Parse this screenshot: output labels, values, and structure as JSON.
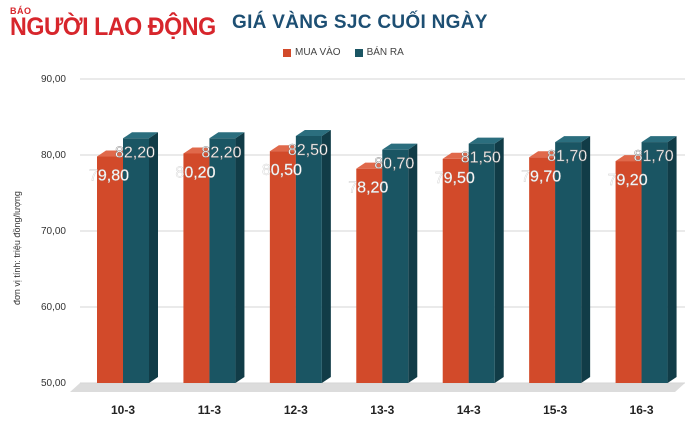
{
  "logo": {
    "small": "BÁO",
    "name": "NGƯỜI LAO ĐỘNG"
  },
  "colors": {
    "buy": "#d24a2a",
    "sell": "#1a5563",
    "brand": "#d7262c",
    "title": "#1d4f73"
  },
  "chart_data": {
    "type": "bar",
    "title": "GIÁ VÀNG SJC CUỐI NGÀY",
    "ylabel": "đơn vị tính: triệu đồng/lượng",
    "xlabel": "",
    "categories": [
      "10-3",
      "11-3",
      "12-3",
      "13-3",
      "14-3",
      "15-3",
      "16-3"
    ],
    "series": [
      {
        "name": "MUA VÀO",
        "values": [
          79.8,
          80.2,
          80.5,
          78.2,
          79.5,
          79.7,
          79.2
        ],
        "labels": [
          "79,80",
          "80,20",
          "80,50",
          "78,20",
          "79,50",
          "79,70",
          "79,20"
        ]
      },
      {
        "name": "BÁN RA",
        "values": [
          82.2,
          82.2,
          82.5,
          80.7,
          81.5,
          81.7,
          81.7
        ],
        "labels": [
          "82,20",
          "82,20",
          "82,50",
          "80,70",
          "81,50",
          "81,70",
          "81,70"
        ]
      }
    ],
    "ylim": [
      50,
      90
    ],
    "yticks": [
      "50,00",
      "60,00",
      "70,00",
      "80,00",
      "90,00"
    ],
    "grid": true,
    "legend": "top"
  }
}
